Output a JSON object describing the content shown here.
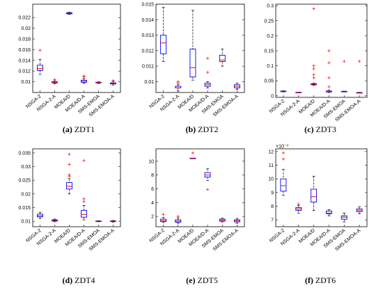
{
  "colors": {
    "box": "#0000ff",
    "median": "#ff0000",
    "outlier": "#ff0000",
    "whisker": "#000000",
    "frame": "#000000"
  },
  "categories": [
    "NSGA-2",
    "NSGA-2-A",
    "MOEA/D",
    "MOEA/D-A",
    "SMS-EMOA",
    "SMS-EMOA-A"
  ],
  "chart_data": [
    {
      "type": "box",
      "letter": "(a)",
      "name": "ZDT1",
      "ylim": [
        0.008,
        0.0245
      ],
      "yticks": [
        0.01,
        0.012,
        0.014,
        0.016,
        0.018,
        0.02,
        0.022
      ],
      "yticklabels": [
        "0.01",
        "0.012",
        "0.014",
        "0.016",
        "0.018",
        "0.02",
        "0.022"
      ],
      "multiplier": "",
      "boxes": [
        {
          "min": 0.0114,
          "q1": 0.0121,
          "median": 0.0125,
          "q3": 0.0131,
          "max": 0.0142,
          "outliers": [
            0.0159
          ]
        },
        {
          "min": 0.0096,
          "q1": 0.0098,
          "median": 0.0099,
          "q3": 0.01,
          "max": 0.0102,
          "outliers": [
            0.0104
          ]
        },
        {
          "min": 0.0226,
          "q1": 0.0227,
          "median": 0.0228,
          "q3": 0.0229,
          "max": 0.023,
          "outliers": []
        },
        {
          "min": 0.0097,
          "q1": 0.0099,
          "median": 0.0101,
          "q3": 0.0103,
          "max": 0.0106,
          "outliers": [
            0.0109,
            0.0111
          ]
        },
        {
          "min": 0.0097,
          "q1": 0.0098,
          "median": 0.0099,
          "q3": 0.0099,
          "max": 0.01,
          "outliers": []
        },
        {
          "min": 0.0094,
          "q1": 0.0096,
          "median": 0.0097,
          "q3": 0.0098,
          "max": 0.0101,
          "outliers": [
            0.0102
          ]
        }
      ]
    },
    {
      "type": "box",
      "letter": "(b)",
      "name": "ZDT2",
      "ylim": [
        0.0093,
        0.015
      ],
      "yticks": [
        0.01,
        0.011,
        0.012,
        0.013,
        0.014,
        0.015
      ],
      "yticklabels": [
        "0.01",
        "0.011",
        "0.012",
        "0.013",
        "0.014",
        "0.015"
      ],
      "multiplier": "",
      "boxes": [
        {
          "min": 0.0113,
          "q1": 0.0118,
          "median": 0.0125,
          "q3": 0.013,
          "max": 0.0148,
          "outliers": []
        },
        {
          "min": 0.0094,
          "q1": 0.0096,
          "median": 0.0096,
          "q3": 0.0097,
          "max": 0.0098,
          "outliers": [
            0.0099,
            0.01
          ]
        },
        {
          "min": 0.0101,
          "q1": 0.0103,
          "median": 0.0109,
          "q3": 0.0121,
          "max": 0.0146,
          "outliers": []
        },
        {
          "min": 0.0096,
          "q1": 0.0097,
          "median": 0.0098,
          "q3": 0.0099,
          "max": 0.01,
          "outliers": [
            0.0106,
            0.0115
          ]
        },
        {
          "min": 0.011,
          "q1": 0.0113,
          "median": 0.0114,
          "q3": 0.0117,
          "max": 0.0121,
          "outliers": []
        },
        {
          "min": 0.0095,
          "q1": 0.0096,
          "median": 0.0097,
          "q3": 0.0098,
          "max": 0.0099,
          "outliers": []
        }
      ]
    },
    {
      "type": "box",
      "letter": "(c)",
      "name": "ZDT3",
      "ylim": [
        -0.005,
        0.305
      ],
      "yticks": [
        0,
        0.05,
        0.1,
        0.15,
        0.2,
        0.25,
        0.3
      ],
      "yticklabels": [
        "0",
        "0.05",
        "0.1",
        "0.15",
        "0.2",
        "0.25",
        "0.3"
      ],
      "multiplier": "",
      "boxes": [
        {
          "min": 0.013,
          "q1": 0.014,
          "median": 0.015,
          "q3": 0.016,
          "max": 0.017,
          "outliers": []
        },
        {
          "min": 0.01,
          "q1": 0.011,
          "median": 0.011,
          "q3": 0.012,
          "max": 0.012,
          "outliers": []
        },
        {
          "min": 0.035,
          "q1": 0.037,
          "median": 0.038,
          "q3": 0.04,
          "max": 0.042,
          "outliers": [
            0.06,
            0.07,
            0.09,
            0.1,
            0.29
          ]
        },
        {
          "min": 0.011,
          "q1": 0.013,
          "median": 0.014,
          "q3": 0.016,
          "max": 0.019,
          "outliers": [
            0.03,
            0.06,
            0.11,
            0.15
          ]
        },
        {
          "min": 0.013,
          "q1": 0.014,
          "median": 0.015,
          "q3": 0.015,
          "max": 0.016,
          "outliers": [
            0.115
          ]
        },
        {
          "min": 0.01,
          "q1": 0.011,
          "median": 0.011,
          "q3": 0.011,
          "max": 0.012,
          "outliers": [
            0.115
          ]
        }
      ]
    },
    {
      "type": "box",
      "letter": "(d)",
      "name": "ZDT4",
      "ylim": [
        0.008,
        0.0365
      ],
      "yticks": [
        0.01,
        0.015,
        0.02,
        0.025,
        0.03,
        0.035
      ],
      "yticklabels": [
        "0.01",
        "0.015",
        "0.02",
        "0.025",
        "0.03",
        "0.035"
      ],
      "multiplier": "",
      "boxes": [
        {
          "min": 0.011,
          "q1": 0.0116,
          "median": 0.012,
          "q3": 0.0126,
          "max": 0.0133,
          "outliers": []
        },
        {
          "min": 0.0098,
          "q1": 0.0101,
          "median": 0.0103,
          "q3": 0.0105,
          "max": 0.0108,
          "outliers": []
        },
        {
          "min": 0.02,
          "q1": 0.0218,
          "median": 0.0228,
          "q3": 0.0242,
          "max": 0.0256,
          "outliers": [
            0.0265,
            0.027,
            0.0308,
            0.0345
          ]
        },
        {
          "min": 0.0105,
          "q1": 0.0115,
          "median": 0.0125,
          "q3": 0.014,
          "max": 0.0158,
          "outliers": [
            0.0172,
            0.0182,
            0.0322
          ]
        },
        {
          "min": 0.0098,
          "q1": 0.0099,
          "median": 0.01,
          "q3": 0.0101,
          "max": 0.0102,
          "outliers": []
        },
        {
          "min": 0.0097,
          "q1": 0.0099,
          "median": 0.01,
          "q3": 0.0101,
          "max": 0.0103,
          "outliers": []
        }
      ]
    },
    {
      "type": "box",
      "letter": "(e)",
      "name": "ZDT5",
      "ylim": [
        0.5,
        11.8
      ],
      "yticks": [
        2,
        4,
        6,
        8,
        10
      ],
      "yticklabels": [
        "2",
        "4",
        "6",
        "8",
        "10"
      ],
      "multiplier": "",
      "boxes": [
        {
          "min": 1.1,
          "q1": 1.25,
          "median": 1.4,
          "q3": 1.6,
          "max": 1.85,
          "outliers": [
            2.3
          ]
        },
        {
          "min": 1.0,
          "q1": 1.15,
          "median": 1.3,
          "q3": 1.5,
          "max": 1.75,
          "outliers": [
            2.0
          ]
        },
        {
          "min": 10.45,
          "q1": 10.45,
          "median": 10.45,
          "q3": 10.45,
          "max": 10.45,
          "outliers": [
            11.2
          ]
        },
        {
          "min": 7.2,
          "q1": 7.7,
          "median": 8.0,
          "q3": 8.35,
          "max": 8.9,
          "outliers": [
            5.9
          ]
        },
        {
          "min": 1.2,
          "q1": 1.3,
          "median": 1.45,
          "q3": 1.6,
          "max": 1.75,
          "outliers": []
        },
        {
          "min": 1.0,
          "q1": 1.2,
          "median": 1.35,
          "q3": 1.5,
          "max": 1.7,
          "outliers": []
        }
      ]
    },
    {
      "type": "box",
      "letter": "(f)",
      "name": "ZDT6",
      "ylim": [
        6.5,
        12.2
      ],
      "yticks": [
        7,
        8,
        9,
        10,
        11,
        12
      ],
      "yticklabels": [
        "7",
        "8",
        "9",
        "10",
        "11",
        "12"
      ],
      "multiplier": "×10⁻³",
      "boxes": [
        {
          "min": 8.8,
          "q1": 9.1,
          "median": 9.5,
          "q3": 10.0,
          "max": 10.7,
          "outliers": [
            11.45,
            11.9
          ]
        },
        {
          "min": 7.5,
          "q1": 7.7,
          "median": 7.8,
          "q3": 7.9,
          "max": 8.05,
          "outliers": [
            8.15
          ]
        },
        {
          "min": 7.7,
          "q1": 8.3,
          "median": 8.7,
          "q3": 9.25,
          "max": 10.2,
          "outliers": []
        },
        {
          "min": 7.3,
          "q1": 7.45,
          "median": 7.5,
          "q3": 7.65,
          "max": 7.75,
          "outliers": []
        },
        {
          "min": 6.85,
          "q1": 7.05,
          "median": 7.2,
          "q3": 7.3,
          "max": 7.5,
          "outliers": []
        },
        {
          "min": 7.45,
          "q1": 7.6,
          "median": 7.7,
          "q3": 7.8,
          "max": 7.95,
          "outliers": []
        }
      ]
    }
  ]
}
